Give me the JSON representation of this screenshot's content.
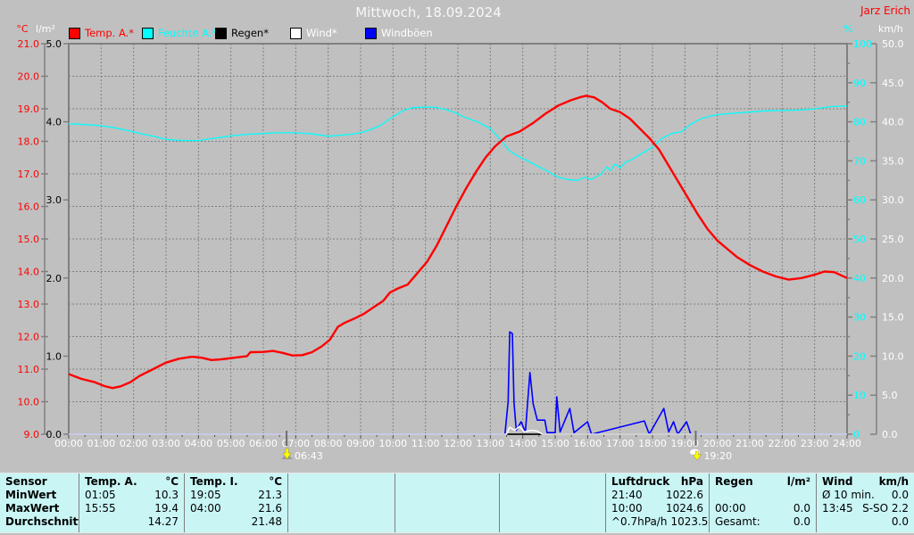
{
  "header": {
    "title": "Mittwoch, 18.09.2024",
    "station": "Jarz Erich"
  },
  "legend": [
    {
      "label": "Temp. A.*",
      "swatch": "#ff0000",
      "text_color": "#ff0000"
    },
    {
      "label": "Feuchte A.*",
      "swatch": "#00ffff",
      "text_color": "#00ffff"
    },
    {
      "label": "Regen*",
      "swatch": "#000000",
      "text_color": "#000000"
    },
    {
      "label": "Wind*",
      "swatch": "#ffffff",
      "text_color": "#ffffff"
    },
    {
      "label": "Windböen",
      "swatch": "#0000ff",
      "text_color": "#ffffff"
    }
  ],
  "axes": {
    "temp": {
      "title": "°C",
      "color": "#ff0000",
      "min": 9,
      "max": 21,
      "step": 1,
      "decimals": 1
    },
    "rain": {
      "title": "l/m²",
      "color": "#000000",
      "title_color": "#ffffff",
      "min": 0,
      "max": 5,
      "step": 1,
      "decimals": 1
    },
    "hum": {
      "title": "%",
      "color": "#00ffff",
      "min": 0,
      "max": 100,
      "step": 10,
      "minor_step": 5,
      "decimals": 0
    },
    "wind": {
      "title": "km/h",
      "color": "#ffffff",
      "min": 0,
      "max": 50,
      "step": 5,
      "decimals": 1
    },
    "time_labels": [
      "00:00",
      "01:00",
      "02:00",
      "03:00",
      "04:00",
      "05:00",
      "06:00",
      "07:00",
      "08:00",
      "09:00",
      "10:00",
      "11:00",
      "12:00",
      "13:00",
      "14:00",
      "15:00",
      "16:00",
      "17:00",
      "18:00",
      "19:00",
      "20:00",
      "21:00",
      "22:00",
      "23:00",
      "24:00"
    ],
    "label_color": "#ffffff",
    "grid_color": "#808080"
  },
  "markers": [
    {
      "label": "06:43",
      "hour": 6.7167,
      "icon": "sunrise-icon"
    },
    {
      "label": "19:20",
      "hour": 19.3333,
      "icon": "sunset-icon"
    }
  ],
  "chart_data": {
    "type": "line",
    "title": "Mittwoch, 18.09.2024",
    "x_unit": "hour of day",
    "x_range": [
      0,
      24
    ],
    "grid": "dashed",
    "series": [
      {
        "key": "regen",
        "name": "Regen*",
        "axis": "rain",
        "color": "#000000",
        "points": [
          [
            0,
            0
          ],
          [
            24,
            0
          ]
        ]
      },
      {
        "key": "gust",
        "name": "Windböen",
        "axis": "wind",
        "color": "#0000ff",
        "points": [
          [
            0,
            0
          ],
          [
            13.45,
            0
          ],
          [
            13.55,
            4.2
          ],
          [
            13.6,
            13.1
          ],
          [
            13.68,
            12.9
          ],
          [
            13.73,
            4.0
          ],
          [
            13.8,
            0.5
          ],
          [
            13.95,
            1.6
          ],
          [
            14.08,
            0.3
          ],
          [
            14.22,
            7.9
          ],
          [
            14.32,
            3.9
          ],
          [
            14.45,
            1.8
          ],
          [
            14.68,
            1.8
          ],
          [
            14.75,
            0.2
          ],
          [
            15.0,
            0.2
          ],
          [
            15.05,
            4.8
          ],
          [
            15.15,
            0.3
          ],
          [
            15.45,
            3.3
          ],
          [
            15.58,
            0.2
          ],
          [
            16.0,
            1.6
          ],
          [
            16.12,
            0
          ],
          [
            17.75,
            1.7
          ],
          [
            17.9,
            0
          ],
          [
            18.35,
            3.3
          ],
          [
            18.5,
            0.3
          ],
          [
            18.65,
            1.6
          ],
          [
            18.78,
            0
          ],
          [
            19.05,
            1.6
          ],
          [
            19.18,
            0
          ],
          [
            24,
            0
          ]
        ]
      },
      {
        "key": "wind",
        "name": "Wind*",
        "axis": "wind",
        "color": "#ffffff",
        "points": [
          [
            0,
            0
          ],
          [
            13.5,
            0
          ],
          [
            13.6,
            0.9
          ],
          [
            13.75,
            0.5
          ],
          [
            13.9,
            1.0
          ],
          [
            14.05,
            0.3
          ],
          [
            14.25,
            0.5
          ],
          [
            14.45,
            0.4
          ],
          [
            14.6,
            0
          ],
          [
            24,
            0
          ]
        ]
      },
      {
        "key": "hum",
        "name": "Feuchte A.*",
        "axis": "hum",
        "color": "#00ffff",
        "points": [
          [
            0,
            79.5
          ],
          [
            0.5,
            79.3
          ],
          [
            1.0,
            79.0
          ],
          [
            1.4,
            78.5
          ],
          [
            1.8,
            77.8
          ],
          [
            2.2,
            77.0
          ],
          [
            2.6,
            76.3
          ],
          [
            3.0,
            75.5
          ],
          [
            3.5,
            75.2
          ],
          [
            4.0,
            75.2
          ],
          [
            4.5,
            75.8
          ],
          [
            5.0,
            76.4
          ],
          [
            5.5,
            76.8
          ],
          [
            6.0,
            77.0
          ],
          [
            6.5,
            77.2
          ],
          [
            7.0,
            77.2
          ],
          [
            7.5,
            76.9
          ],
          [
            8.0,
            76.3
          ],
          [
            8.3,
            76.5
          ],
          [
            8.7,
            76.8
          ],
          [
            9.0,
            77.2
          ],
          [
            9.3,
            78.0
          ],
          [
            9.6,
            79.0
          ],
          [
            10.0,
            81.3
          ],
          [
            10.3,
            82.8
          ],
          [
            10.6,
            83.6
          ],
          [
            11.0,
            83.8
          ],
          [
            11.3,
            83.7
          ],
          [
            11.6,
            83.2
          ],
          [
            11.9,
            82.4
          ],
          [
            12.2,
            81.2
          ],
          [
            12.6,
            80.0
          ],
          [
            13.0,
            78.3
          ],
          [
            13.3,
            75.5
          ],
          [
            13.6,
            72.5
          ],
          [
            13.9,
            71.0
          ],
          [
            14.2,
            69.8
          ],
          [
            14.5,
            68.5
          ],
          [
            14.8,
            67.2
          ],
          [
            15.1,
            65.8
          ],
          [
            15.4,
            65.2
          ],
          [
            15.7,
            65.0
          ],
          [
            15.9,
            65.8
          ],
          [
            16.1,
            65.2
          ],
          [
            16.4,
            66.5
          ],
          [
            16.6,
            68.5
          ],
          [
            16.7,
            67.5
          ],
          [
            16.85,
            69.2
          ],
          [
            17.0,
            68.2
          ],
          [
            17.15,
            69.5
          ],
          [
            17.4,
            70.5
          ],
          [
            17.7,
            72.0
          ],
          [
            18.0,
            73.5
          ],
          [
            18.3,
            75.8
          ],
          [
            18.6,
            77.0
          ],
          [
            18.9,
            77.5
          ],
          [
            19.2,
            79.5
          ],
          [
            19.5,
            80.8
          ],
          [
            19.8,
            81.5
          ],
          [
            20.0,
            81.8
          ],
          [
            20.5,
            82.2
          ],
          [
            21.0,
            82.5
          ],
          [
            21.5,
            82.8
          ],
          [
            22.0,
            82.9
          ],
          [
            22.5,
            83.0
          ],
          [
            23.0,
            83.3
          ],
          [
            23.4,
            83.8
          ],
          [
            23.7,
            84.0
          ],
          [
            24,
            84.0
          ]
        ]
      },
      {
        "key": "temp",
        "name": "Temp. A.*",
        "axis": "temp",
        "color": "#ff0000",
        "points": [
          [
            0,
            10.85
          ],
          [
            0.4,
            10.7
          ],
          [
            0.8,
            10.6
          ],
          [
            1.1,
            10.48
          ],
          [
            1.35,
            10.42
          ],
          [
            1.6,
            10.47
          ],
          [
            1.9,
            10.6
          ],
          [
            2.2,
            10.8
          ],
          [
            2.6,
            11.0
          ],
          [
            3.0,
            11.2
          ],
          [
            3.4,
            11.32
          ],
          [
            3.8,
            11.38
          ],
          [
            4.1,
            11.35
          ],
          [
            4.4,
            11.28
          ],
          [
            4.7,
            11.3
          ],
          [
            5.1,
            11.35
          ],
          [
            5.5,
            11.4
          ],
          [
            5.6,
            11.52
          ],
          [
            6.0,
            11.53
          ],
          [
            6.3,
            11.56
          ],
          [
            6.6,
            11.5
          ],
          [
            6.9,
            11.42
          ],
          [
            7.2,
            11.43
          ],
          [
            7.5,
            11.52
          ],
          [
            7.8,
            11.7
          ],
          [
            8.05,
            11.9
          ],
          [
            8.3,
            12.3
          ],
          [
            8.5,
            12.42
          ],
          [
            8.8,
            12.55
          ],
          [
            9.1,
            12.7
          ],
          [
            9.4,
            12.9
          ],
          [
            9.7,
            13.1
          ],
          [
            9.9,
            13.35
          ],
          [
            10.15,
            13.48
          ],
          [
            10.45,
            13.6
          ],
          [
            10.75,
            13.95
          ],
          [
            11.05,
            14.3
          ],
          [
            11.35,
            14.8
          ],
          [
            11.65,
            15.4
          ],
          [
            11.95,
            16.0
          ],
          [
            12.25,
            16.55
          ],
          [
            12.55,
            17.05
          ],
          [
            12.85,
            17.5
          ],
          [
            13.15,
            17.85
          ],
          [
            13.5,
            18.15
          ],
          [
            13.9,
            18.3
          ],
          [
            14.3,
            18.55
          ],
          [
            14.7,
            18.85
          ],
          [
            15.1,
            19.1
          ],
          [
            15.45,
            19.25
          ],
          [
            15.75,
            19.35
          ],
          [
            15.95,
            19.4
          ],
          [
            16.2,
            19.35
          ],
          [
            16.45,
            19.2
          ],
          [
            16.7,
            19.0
          ],
          [
            17.0,
            18.9
          ],
          [
            17.3,
            18.7
          ],
          [
            17.6,
            18.4
          ],
          [
            17.9,
            18.1
          ],
          [
            18.2,
            17.75
          ],
          [
            18.5,
            17.25
          ],
          [
            18.8,
            16.75
          ],
          [
            19.1,
            16.25
          ],
          [
            19.4,
            15.75
          ],
          [
            19.7,
            15.3
          ],
          [
            20.0,
            14.95
          ],
          [
            20.3,
            14.7
          ],
          [
            20.6,
            14.45
          ],
          [
            21.0,
            14.2
          ],
          [
            21.4,
            14.0
          ],
          [
            21.8,
            13.85
          ],
          [
            22.2,
            13.75
          ],
          [
            22.6,
            13.8
          ],
          [
            23.0,
            13.9
          ],
          [
            23.3,
            14.0
          ],
          [
            23.6,
            13.98
          ],
          [
            24,
            13.8
          ]
        ]
      }
    ]
  },
  "table": {
    "row_labels": [
      "Sensor",
      "MinWert",
      "MaxWert",
      "Durchschnitt"
    ],
    "columns": [
      {
        "name": "Temp. A.",
        "unit": "°C",
        "rows": [
          [
            "01:05",
            "10.3"
          ],
          [
            "15:55",
            "19.4"
          ],
          [
            "",
            "14.27"
          ]
        ]
      },
      {
        "name": "Temp. I.",
        "unit": "°C",
        "rows": [
          [
            "19:05",
            "21.3"
          ],
          [
            "04:00",
            "21.6"
          ],
          [
            "",
            "21.48"
          ]
        ]
      },
      {
        "name": "",
        "unit": "",
        "rows": [
          [
            "",
            ""
          ],
          [
            "",
            ""
          ],
          [
            "",
            ""
          ]
        ]
      },
      {
        "name": "",
        "unit": "",
        "rows": [
          [
            "",
            ""
          ],
          [
            "",
            ""
          ],
          [
            "",
            ""
          ]
        ]
      },
      {
        "name": "",
        "unit": "",
        "rows": [
          [
            "",
            ""
          ],
          [
            "",
            ""
          ],
          [
            "",
            ""
          ]
        ]
      },
      {
        "name": "Luftdruck",
        "unit": "hPa",
        "rows": [
          [
            "21:40",
            "1022.6"
          ],
          [
            "10:00",
            "1024.6"
          ],
          [
            "^0.7hPa/h",
            "1023.5"
          ]
        ]
      },
      {
        "name": "Regen",
        "unit": "l/m²",
        "rows": [
          [
            "",
            ""
          ],
          [
            "00:00",
            "0.0"
          ],
          [
            "Gesamt:",
            "0.0"
          ]
        ]
      },
      {
        "name": "Wind",
        "unit": "km/h",
        "rows": [
          [
            "Ø 10 min.",
            "0.0"
          ],
          [
            "13:45",
            "S-SO 2.2"
          ],
          [
            "",
            "0.0"
          ]
        ]
      }
    ]
  }
}
